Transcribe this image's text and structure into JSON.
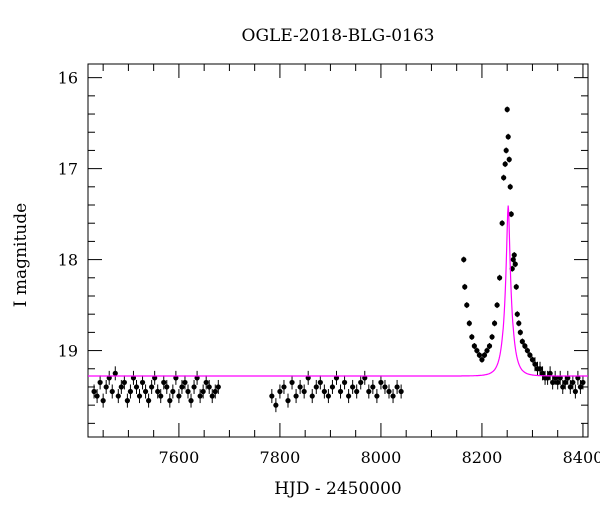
{
  "chart_data": {
    "type": "scatter",
    "title": "OGLE-2018-BLG-0163",
    "xlabel": "HJD - 2450000",
    "ylabel": "I magnitude",
    "xlim": [
      7420,
      8410
    ],
    "ylim": [
      19.95,
      15.85
    ],
    "y_inverted": true,
    "x_ticks": [
      7600,
      7800,
      8000,
      8200,
      8400
    ],
    "y_ticks": [
      16,
      17,
      18,
      19
    ],
    "grid": false,
    "legend": "none",
    "colors": {
      "points": "#000000",
      "model": "#ff00ff"
    },
    "series": [
      {
        "kind": "points",
        "x": [
          7432,
          7438,
          7444,
          7450,
          7456,
          7462,
          7468,
          7474,
          7480,
          7486,
          7492,
          7498,
          7504,
          7510,
          7516,
          7522,
          7528,
          7534,
          7540,
          7546,
          7552,
          7558,
          7564,
          7570,
          7576,
          7582,
          7588,
          7594,
          7600,
          7606,
          7612,
          7618,
          7624,
          7630,
          7636,
          7642,
          7648,
          7654,
          7660,
          7666,
          7672,
          7678,
          7784,
          7792,
          7800,
          7808,
          7816,
          7824,
          7832,
          7840,
          7848,
          7856,
          7864,
          7872,
          7880,
          7888,
          7896,
          7904,
          7912,
          7920,
          7928,
          7936,
          7944,
          7952,
          7960,
          7968,
          7976,
          7984,
          7992,
          8000,
          8008,
          8016,
          8024,
          8032,
          8040,
          8164,
          8166,
          8170,
          8175,
          8180,
          8185,
          8190,
          8195,
          8200,
          8205,
          8210,
          8215,
          8220,
          8225,
          8230,
          8235,
          8240,
          8243,
          8246,
          8248,
          8250,
          8252,
          8254,
          8256,
          8258,
          8260,
          8262,
          8264,
          8266,
          8268,
          8270,
          8273,
          8276,
          8280,
          8285,
          8290,
          8295,
          8300,
          8305,
          8310,
          8315,
          8320,
          8325,
          8330,
          8335,
          8340,
          8345,
          8350,
          8355,
          8360,
          8365,
          8370,
          8375,
          8380,
          8385,
          8390,
          8395,
          8400
        ],
        "y": [
          19.45,
          19.5,
          19.35,
          19.55,
          19.4,
          19.3,
          19.45,
          19.25,
          19.5,
          19.4,
          19.35,
          19.55,
          19.45,
          19.3,
          19.4,
          19.5,
          19.35,
          19.45,
          19.55,
          19.4,
          19.3,
          19.45,
          19.5,
          19.35,
          19.4,
          19.55,
          19.45,
          19.3,
          19.5,
          19.4,
          19.35,
          19.45,
          19.55,
          19.4,
          19.3,
          19.5,
          19.45,
          19.35,
          19.4,
          19.5,
          19.45,
          19.4,
          19.5,
          19.6,
          19.45,
          19.4,
          19.55,
          19.35,
          19.5,
          19.4,
          19.45,
          19.3,
          19.5,
          19.4,
          19.35,
          19.45,
          19.5,
          19.4,
          19.3,
          19.45,
          19.35,
          19.5,
          19.4,
          19.45,
          19.35,
          19.3,
          19.45,
          19.4,
          19.5,
          19.35,
          19.4,
          19.45,
          19.5,
          19.4,
          19.45,
          18.0,
          18.3,
          18.5,
          18.7,
          18.85,
          18.95,
          19.0,
          19.05,
          19.1,
          19.05,
          19.0,
          18.95,
          18.85,
          18.7,
          18.5,
          18.2,
          17.6,
          17.1,
          16.95,
          16.8,
          16.35,
          16.65,
          16.9,
          17.2,
          17.5,
          18.1,
          18.0,
          17.95,
          18.05,
          18.3,
          18.6,
          18.7,
          18.8,
          18.9,
          18.95,
          19.0,
          19.05,
          19.1,
          19.15,
          19.2,
          19.2,
          19.25,
          19.3,
          19.3,
          19.25,
          19.35,
          19.3,
          19.35,
          19.3,
          19.4,
          19.35,
          19.3,
          19.4,
          19.35,
          19.45,
          19.3,
          19.4,
          19.35
        ]
      },
      {
        "kind": "model",
        "t0": 8252,
        "tE": 14,
        "u0": 0.18,
        "baseline": 19.28
      }
    ]
  }
}
